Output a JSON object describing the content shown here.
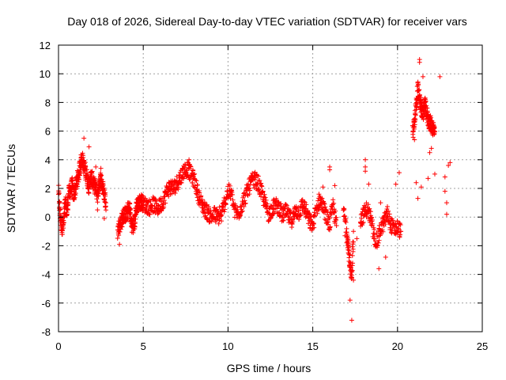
{
  "chart_data": {
    "type": "scatter",
    "title": "Day 018 of 2026, Sidereal Day-to-day VTEC variation (SDTVAR) for receiver vars",
    "xlabel": "GPS time / hours",
    "ylabel": "SDTVAR / TECUs",
    "xlim": [
      0,
      25
    ],
    "ylim": [
      -8,
      12
    ],
    "xticks": [
      0,
      5,
      10,
      15,
      20,
      25
    ],
    "yticks": [
      -8,
      -6,
      -4,
      -2,
      0,
      2,
      4,
      6,
      8,
      10,
      12
    ],
    "grid": true,
    "marker": "+",
    "color": "#ff0000",
    "series": [
      {
        "name": "SDTVAR",
        "trend": [
          [
            0.0,
            1.8
          ],
          [
            0.1,
            0.0
          ],
          [
            0.2,
            -0.7
          ],
          [
            0.3,
            -0.5
          ],
          [
            0.4,
            1.0
          ],
          [
            0.5,
            0.3
          ],
          [
            0.6,
            1.6
          ],
          [
            0.7,
            1.9
          ],
          [
            0.8,
            2.2
          ],
          [
            0.9,
            1.5
          ],
          [
            1.0,
            2.0
          ],
          [
            1.1,
            2.6
          ],
          [
            1.2,
            3.0
          ],
          [
            1.3,
            3.8
          ],
          [
            1.4,
            4.1
          ],
          [
            1.5,
            3.5
          ],
          [
            1.6,
            3.2
          ],
          [
            1.7,
            2.7
          ],
          [
            1.8,
            2.1
          ],
          [
            1.9,
            2.8
          ],
          [
            2.0,
            2.6
          ],
          [
            2.1,
            2.2
          ],
          [
            2.2,
            2.0
          ],
          [
            2.3,
            1.5
          ],
          [
            2.4,
            2.4
          ],
          [
            2.5,
            2.7
          ],
          [
            2.6,
            2.1
          ],
          [
            2.7,
            1.6
          ],
          [
            2.8,
            1.0
          ],
          [
            3.5,
            -1.0
          ],
          [
            3.6,
            -0.6
          ],
          [
            3.7,
            -0.3
          ],
          [
            3.8,
            0.0
          ],
          [
            3.9,
            0.2
          ],
          [
            4.0,
            0.1
          ],
          [
            4.1,
            0.5
          ],
          [
            4.2,
            0.6
          ],
          [
            4.3,
            -0.4
          ],
          [
            4.4,
            -0.7
          ],
          [
            4.5,
            -0.3
          ],
          [
            4.6,
            0.8
          ],
          [
            4.7,
            0.9
          ],
          [
            4.8,
            1.0
          ],
          [
            4.9,
            1.1
          ],
          [
            5.0,
            0.9
          ],
          [
            5.2,
            0.8
          ],
          [
            5.4,
            0.7
          ],
          [
            5.6,
            0.9
          ],
          [
            5.8,
            0.6
          ],
          [
            6.0,
            0.8
          ],
          [
            6.2,
            1.2
          ],
          [
            6.4,
            1.8
          ],
          [
            6.6,
            2.2
          ],
          [
            6.8,
            2.0
          ],
          [
            7.0,
            2.4
          ],
          [
            7.2,
            2.8
          ],
          [
            7.4,
            3.2
          ],
          [
            7.6,
            3.4
          ],
          [
            7.8,
            3.0
          ],
          [
            8.0,
            2.6
          ],
          [
            8.2,
            1.8
          ],
          [
            8.4,
            1.0
          ],
          [
            8.6,
            0.6
          ],
          [
            8.8,
            0.3
          ],
          [
            9.0,
            0.0
          ],
          [
            9.2,
            0.2
          ],
          [
            9.4,
            0.0
          ],
          [
            9.6,
            0.1
          ],
          [
            9.8,
            1.0
          ],
          [
            10.0,
            1.8
          ],
          [
            10.2,
            1.6
          ],
          [
            10.4,
            0.4
          ],
          [
            10.6,
            0.2
          ],
          [
            10.8,
            0.8
          ],
          [
            11.0,
            1.4
          ],
          [
            11.2,
            2.0
          ],
          [
            11.4,
            2.5
          ],
          [
            11.6,
            2.6
          ],
          [
            11.8,
            2.3
          ],
          [
            12.0,
            1.6
          ],
          [
            12.2,
            0.9
          ],
          [
            12.4,
            0.2
          ],
          [
            12.6,
            0.6
          ],
          [
            12.8,
            0.8
          ],
          [
            13.0,
            0.7
          ],
          [
            13.2,
            0.1
          ],
          [
            13.4,
            0.4
          ],
          [
            13.6,
            0.0
          ],
          [
            13.8,
            -0.2
          ],
          [
            14.0,
            0.5
          ],
          [
            14.2,
            0.3
          ],
          [
            14.4,
            0.9
          ],
          [
            14.6,
            0.4
          ],
          [
            14.8,
            -0.3
          ],
          [
            15.0,
            -0.6
          ],
          [
            15.2,
            0.5
          ],
          [
            15.4,
            1.2
          ],
          [
            15.6,
            0.8
          ],
          [
            15.8,
            0.0
          ],
          [
            16.0,
            -0.5
          ],
          [
            16.2,
            0.8
          ],
          [
            16.4,
            -0.6
          ],
          [
            16.8,
            0.5
          ],
          [
            17.0,
            -0.8
          ],
          [
            17.1,
            -2.0
          ],
          [
            17.2,
            -3.5
          ],
          [
            17.3,
            -4.5
          ],
          [
            17.4,
            -1.0
          ],
          [
            17.8,
            -0.3
          ],
          [
            18.0,
            0.2
          ],
          [
            18.2,
            0.6
          ],
          [
            18.4,
            0.0
          ],
          [
            18.6,
            -1.2
          ],
          [
            18.8,
            -1.8
          ],
          [
            19.0,
            -0.8
          ],
          [
            19.2,
            -0.4
          ],
          [
            19.4,
            0.3
          ],
          [
            19.6,
            -0.5
          ],
          [
            19.8,
            -0.9
          ],
          [
            20.0,
            -0.7
          ],
          [
            20.2,
            -1.0
          ],
          [
            20.9,
            5.9
          ],
          [
            21.0,
            6.5
          ],
          [
            21.1,
            7.8
          ],
          [
            21.2,
            9.0
          ],
          [
            21.3,
            8.2
          ],
          [
            21.4,
            7.6
          ],
          [
            21.5,
            7.2
          ],
          [
            21.6,
            7.9
          ],
          [
            21.7,
            7.4
          ],
          [
            21.8,
            6.8
          ],
          [
            21.9,
            6.6
          ],
          [
            22.0,
            6.4
          ],
          [
            22.1,
            6.2
          ],
          [
            22.2,
            6.0
          ]
        ],
        "outliers": [
          [
            1.5,
            5.5
          ],
          [
            1.8,
            4.9
          ],
          [
            2.2,
            3.5
          ],
          [
            2.3,
            0.5
          ],
          [
            2.5,
            3.4
          ],
          [
            2.7,
            -0.1
          ],
          [
            3.6,
            -1.9
          ],
          [
            6.6,
            1.6
          ],
          [
            7.7,
            4.0
          ],
          [
            9.5,
            0.7
          ],
          [
            15.6,
            2.1
          ],
          [
            16.0,
            3.3
          ],
          [
            16.0,
            3.5
          ],
          [
            16.3,
            2.2
          ],
          [
            16.9,
            -1.3
          ],
          [
            17.0,
            -1.8
          ],
          [
            17.1,
            -2.5
          ],
          [
            17.2,
            -5.8
          ],
          [
            17.3,
            -7.2
          ],
          [
            17.4,
            -4.4
          ],
          [
            17.6,
            -1.5
          ],
          [
            18.1,
            4.0
          ],
          [
            18.1,
            3.5
          ],
          [
            18.1,
            3.2
          ],
          [
            18.3,
            2.3
          ],
          [
            18.4,
            0.0
          ],
          [
            18.9,
            -3.6
          ],
          [
            19.0,
            1.0
          ],
          [
            19.3,
            -2.8
          ],
          [
            19.9,
            2.3
          ],
          [
            20.1,
            3.1
          ],
          [
            21.0,
            5.4
          ],
          [
            21.1,
            2.4
          ],
          [
            21.2,
            1.3
          ],
          [
            21.3,
            10.8
          ],
          [
            21.3,
            11.0
          ],
          [
            21.4,
            2.1
          ],
          [
            21.5,
            9.8
          ],
          [
            21.8,
            2.7
          ],
          [
            21.9,
            4.5
          ],
          [
            22.0,
            4.8
          ],
          [
            22.2,
            3.0
          ],
          [
            22.5,
            9.8
          ],
          [
            22.8,
            2.8
          ],
          [
            22.8,
            1.8
          ],
          [
            22.9,
            1.0
          ],
          [
            22.9,
            0.2
          ],
          [
            23.0,
            3.6
          ],
          [
            23.1,
            3.8
          ]
        ]
      }
    ]
  }
}
